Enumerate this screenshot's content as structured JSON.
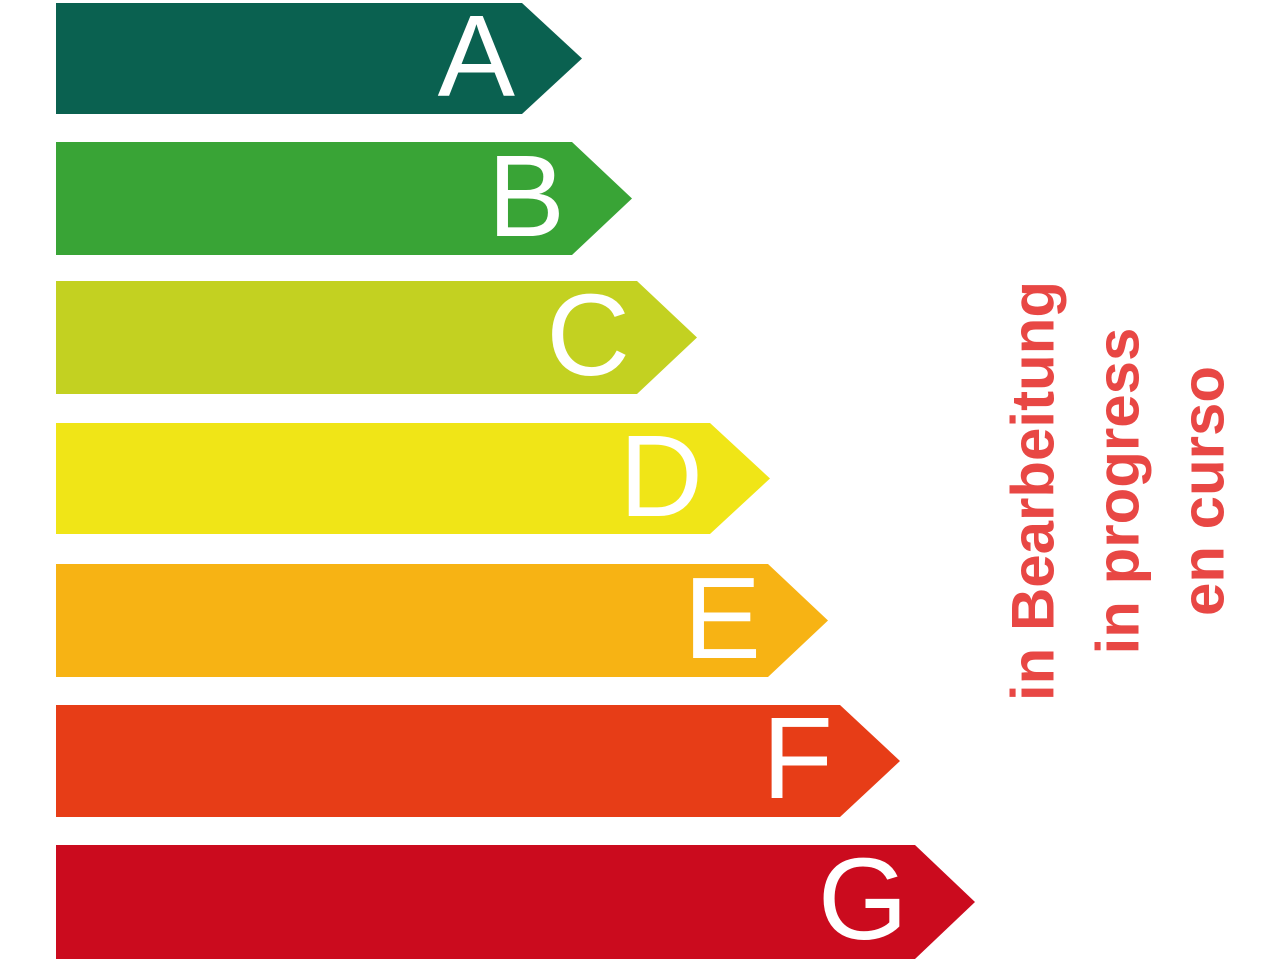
{
  "background_color": "#ffffff",
  "energy_scale": {
    "letter_color": "#ffffff",
    "grades": [
      {
        "letter": "A",
        "color": "#0a6150"
      },
      {
        "letter": "B",
        "color": "#39a436"
      },
      {
        "letter": "C",
        "color": "#c3d121"
      },
      {
        "letter": "D",
        "color": "#f0e517"
      },
      {
        "letter": "E",
        "color": "#f7b314"
      },
      {
        "letter": "F",
        "color": "#e73d17"
      },
      {
        "letter": "G",
        "color": "#cb0b1e"
      }
    ]
  },
  "status_note": {
    "color": "#e84744",
    "lines": [
      "in Bearbeitung",
      "in progress",
      "en curso"
    ]
  }
}
